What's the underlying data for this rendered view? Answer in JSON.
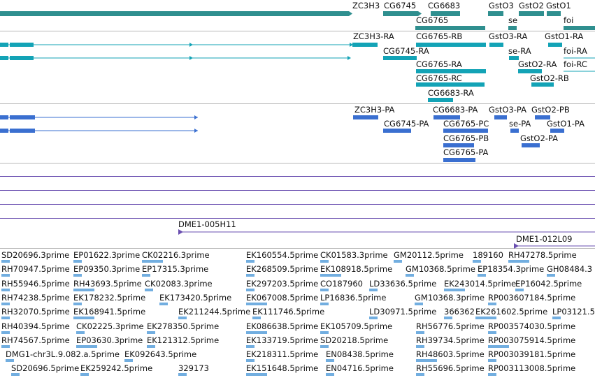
{
  "colors": {
    "gene": "#2f8f8f",
    "transcript": "#13a3b6",
    "translation": "#3a6fd0",
    "clone": "#6a4fb0",
    "est": "#72aee0",
    "separator": "#b8b8b8"
  },
  "tracks": {
    "genes": [
      {
        "label": "ZC3H3"
      },
      {
        "label": "CG6745"
      },
      {
        "label": "CG6683"
      },
      {
        "label": "GstO3"
      },
      {
        "label": "GstO2"
      },
      {
        "label": "GstO1"
      },
      {
        "label": "CG6765"
      },
      {
        "label": "se"
      },
      {
        "label": "foi"
      }
    ],
    "transcripts": [
      {
        "label": "ZC3H3-RA"
      },
      {
        "label": "CG6765-RB"
      },
      {
        "label": "GstO3-RA"
      },
      {
        "label": "GstO1-RA"
      },
      {
        "label": "CG6745-RA"
      },
      {
        "label": "se-RA"
      },
      {
        "label": "foi-RA"
      },
      {
        "label": "CG6765-RA"
      },
      {
        "label": "GstO2-RA"
      },
      {
        "label": "foi-RC"
      },
      {
        "label": "CG6765-RC"
      },
      {
        "label": "GstO2-RB"
      },
      {
        "label": "CG6683-RA"
      }
    ],
    "translations": [
      {
        "label": "ZC3H3-PA"
      },
      {
        "label": "CG6683-PA"
      },
      {
        "label": "GstO3-PA"
      },
      {
        "label": "GstO2-PB"
      },
      {
        "label": "CG6745-PA"
      },
      {
        "label": "CG6765-PC"
      },
      {
        "label": "se-PA"
      },
      {
        "label": "GstO1-PA"
      },
      {
        "label": "CG6765-PB"
      },
      {
        "label": "GstO2-PA"
      },
      {
        "label": "CG6765-PA"
      }
    ],
    "clones": [
      {
        "label": "DME1-005H11"
      },
      {
        "label": "DME1-012L09"
      }
    ],
    "ests": [
      "SD20696.3prime",
      "EP01622.3prime",
      "CK02216.3prime",
      "EK160554.5prime",
      "CK01583.3prime",
      "GM20112.5prime",
      "189160",
      "RH47278.5prime",
      "RH70947.5prime",
      "EP09350.3prime",
      "EP17315.3prime",
      "EK268509.5prime",
      "EK108918.5prime",
      "GM10368.5prime",
      "EP18354.3prime",
      "GH08484.3",
      "RH55946.5prime",
      "RH43693.5prime",
      "CK02083.3prime",
      "EK297203.5prime",
      "CO187960",
      "LD33636.5prime",
      "EK243014.5prime",
      "EP16042.5prime",
      "RH74238.5prime",
      "EK178232.5prime",
      "EK173420.5prime",
      "EK067008.5prime",
      "LP16836.5prime",
      "GM10368.3prime",
      "RP003607184.5prime",
      "RH32070.5prime",
      "EK168941.5prime",
      "EK211244.5prime",
      "EK111746.5prime",
      "LD30971.5prime",
      "366362",
      "EK261602.5prime",
      "LP03121.5",
      "RH40394.5prime",
      "CK02225.3prime",
      "EK278350.5prime",
      "EK086638.5prime",
      "EK105709.5prime",
      "RH56776.5prime",
      "RP003574030.5prime",
      "RH74567.5prime",
      "EP03630.3prime",
      "EK121312.5prime",
      "EK133719.5prime",
      "SD20218.5prime",
      "RH39734.5prime",
      "RP003075914.5prime",
      "DMG1-chr3L.9.082.a.5prime",
      "EK092643.5prime",
      "EK218311.5prime",
      "EN08438.5prime",
      "RH48603.5prime",
      "RP003039181.5prime",
      "SD20696.5prime",
      "EK259242.5prime",
      "329173",
      "EK151648.5prime",
      "EN04716.5prime",
      "RH55696.5prime",
      "RP003113008.5prime"
    ]
  }
}
